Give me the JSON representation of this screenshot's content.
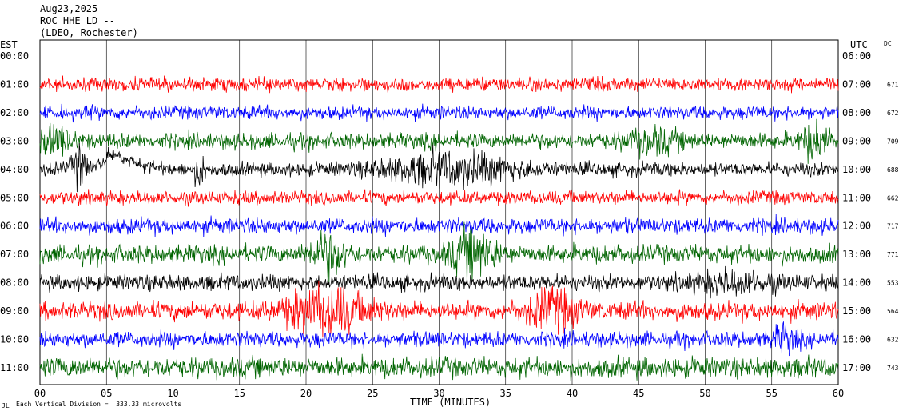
{
  "header": {
    "date": "Aug23,2025",
    "station": "ROC HHE LD --",
    "network": "(LDEO, Rochester)"
  },
  "left_axis_title": "EST",
  "right_axis_title": "UTC",
  "dc_title": "DC",
  "footer_note": "Each Vertical Division =  333.33 microvolts",
  "footer_mark": "JL",
  "chart_data": {
    "type": "line",
    "title": "",
    "xlabel": "TIME (MINUTES)",
    "ylabel": "",
    "xlim": [
      0,
      60
    ],
    "x_ticks": [
      "00",
      "05",
      "10",
      "15",
      "20",
      "25",
      "30",
      "35",
      "40",
      "45",
      "50",
      "55",
      "60"
    ],
    "grid": true,
    "rows": [
      {
        "est": "00:00",
        "utc": "06:00",
        "dc": "",
        "color": null
      },
      {
        "est": "01:00",
        "utc": "07:00",
        "dc": "671",
        "color": "#ff0000"
      },
      {
        "est": "02:00",
        "utc": "08:00",
        "dc": "672",
        "color": "#0000ff"
      },
      {
        "est": "03:00",
        "utc": "09:00",
        "dc": "709",
        "color": "#006400"
      },
      {
        "est": "04:00",
        "utc": "10:00",
        "dc": "688",
        "color": "#000000"
      },
      {
        "est": "05:00",
        "utc": "11:00",
        "dc": "662",
        "color": "#ff0000"
      },
      {
        "est": "06:00",
        "utc": "12:00",
        "dc": "717",
        "color": "#0000ff"
      },
      {
        "est": "07:00",
        "utc": "13:00",
        "dc": "771",
        "color": "#006400"
      },
      {
        "est": "08:00",
        "utc": "14:00",
        "dc": "553",
        "color": "#000000"
      },
      {
        "est": "09:00",
        "utc": "15:00",
        "dc": "564",
        "color": "#ff0000"
      },
      {
        "est": "10:00",
        "utc": "16:00",
        "dc": "632",
        "color": "#0000ff"
      },
      {
        "est": "11:00",
        "utc": "17:00",
        "dc": "743",
        "color": "#006400"
      }
    ]
  }
}
